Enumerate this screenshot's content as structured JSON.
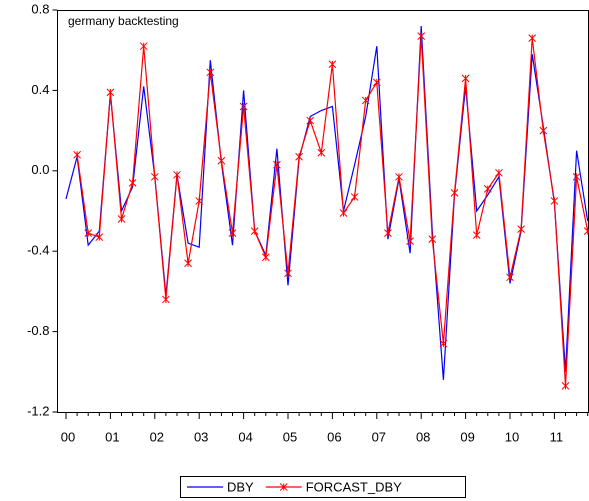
{
  "chart_data": {
    "type": "line",
    "annotation": "germany backtesting",
    "categories": [
      "00",
      null,
      null,
      null,
      "01",
      null,
      null,
      null,
      "02",
      null,
      null,
      null,
      "03",
      null,
      null,
      null,
      "04",
      null,
      null,
      null,
      "05",
      null,
      null,
      null,
      "06",
      null,
      null,
      null,
      "07",
      null,
      null,
      null,
      "08",
      null,
      null,
      null,
      "09",
      null,
      null,
      null,
      "10",
      null,
      null,
      null,
      "11",
      null,
      null,
      null
    ],
    "series": [
      {
        "name": "DBY",
        "color": "#0000ff",
        "marker": "none",
        "values": [
          -0.14,
          0.07,
          -0.37,
          -0.3,
          0.38,
          -0.2,
          -0.08,
          0.42,
          -0.03,
          -0.62,
          -0.02,
          -0.36,
          -0.38,
          0.55,
          0.04,
          -0.37,
          0.4,
          -0.3,
          -0.42,
          0.11,
          -0.57,
          0.06,
          0.27,
          0.3,
          0.32,
          -0.2,
          0.03,
          0.27,
          0.62,
          -0.34,
          -0.04,
          -0.41,
          0.72,
          -0.3,
          -1.04,
          -0.12,
          0.42,
          -0.2,
          -0.12,
          -0.03,
          -0.56,
          -0.3,
          0.58,
          0.22,
          -0.16,
          -1.0,
          0.1,
          -0.25
        ]
      },
      {
        "name": "FORCAST_DBY",
        "color": "#ff0000",
        "marker": "x",
        "values": [
          null,
          0.08,
          -0.31,
          -0.33,
          0.39,
          -0.24,
          -0.06,
          0.62,
          -0.03,
          -0.64,
          -0.02,
          -0.46,
          -0.15,
          0.49,
          0.05,
          -0.31,
          0.32,
          -0.3,
          -0.43,
          0.03,
          -0.51,
          0.07,
          0.25,
          0.09,
          0.53,
          -0.21,
          -0.13,
          0.35,
          0.44,
          -0.31,
          -0.03,
          -0.35,
          0.67,
          -0.34,
          -0.86,
          -0.11,
          0.46,
          -0.32,
          -0.09,
          -0.01,
          -0.53,
          -0.29,
          0.66,
          0.2,
          -0.15,
          -1.07,
          -0.03,
          -0.3
        ]
      }
    ],
    "ylim": [
      -1.2,
      0.8
    ],
    "yticks": [
      -1.2,
      -0.8,
      -0.4,
      {
        "value": 0,
        "label": "0.0"
      },
      0.4,
      0.8
    ],
    "grid": false
  }
}
